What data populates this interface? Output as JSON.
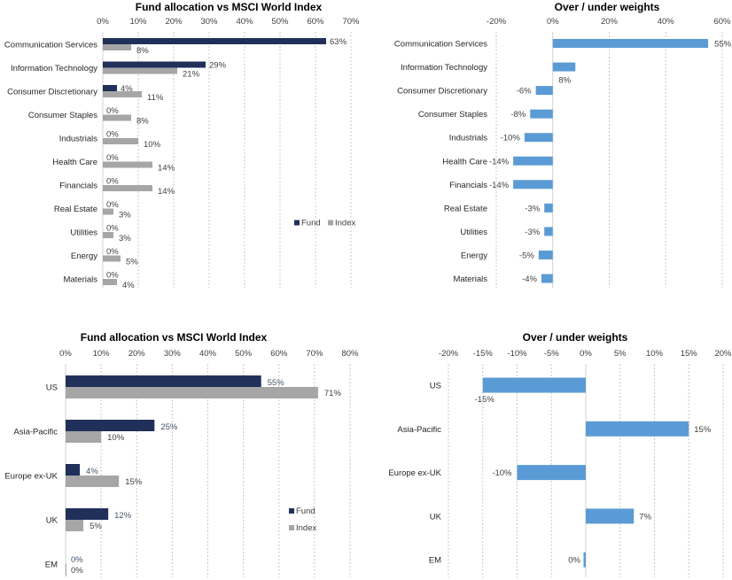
{
  "colors": {
    "fund": "#203059",
    "index": "#a6a6a6",
    "diff": "#5b9bd5"
  },
  "chart_data": [
    {
      "id": "sector-allocation",
      "type": "bar",
      "orientation": "horizontal",
      "title": "Fund allocation vs MSCI World Index",
      "categories": [
        "Communication Services",
        "Information Technology",
        "Consumer Discretionary",
        "Consumer Staples",
        "Industrials",
        "Health Care",
        "Financials",
        "Real Estate",
        "Utilities",
        "Energy",
        "Materials"
      ],
      "series": [
        {
          "name": "Fund",
          "values": [
            63,
            29,
            4,
            0,
            0,
            0,
            0,
            0,
            0,
            0,
            0
          ],
          "labels": [
            "63%",
            "29%",
            "4%",
            "0%",
            "0%",
            "0%",
            "0%",
            "0%",
            "0%",
            "0%",
            "0%"
          ]
        },
        {
          "name": "Index",
          "values": [
            8,
            21,
            11,
            8,
            10,
            14,
            14,
            3,
            3,
            5,
            4
          ],
          "labels": [
            "8%",
            "21%",
            "11%",
            "8%",
            "10%",
            "14%",
            "14%",
            "3%",
            "3%",
            "5%",
            "4%"
          ]
        }
      ],
      "xlim": [
        0,
        70
      ],
      "xticks": [
        "0%",
        "10%",
        "20%",
        "30%",
        "40%",
        "50%",
        "60%",
        "70%"
      ],
      "grid": true,
      "legend": {
        "placement": "right-middle",
        "entries": [
          "Fund",
          "Index"
        ]
      }
    },
    {
      "id": "sector-over-under",
      "type": "bar",
      "orientation": "horizontal",
      "title": "Over / under weights",
      "categories": [
        "Communication Services",
        "Information Technology",
        "Consumer Discretionary",
        "Consumer Staples",
        "Industrials",
        "Health Care",
        "Financials",
        "Real Estate",
        "Utilities",
        "Energy",
        "Materials"
      ],
      "series": [
        {
          "name": "Over / under",
          "values": [
            55,
            8,
            -6,
            -8,
            -10,
            -14,
            -14,
            -3,
            -3,
            -5,
            -4
          ],
          "labels": [
            "55%",
            "8%",
            "-6%",
            "-8%",
            "-10%",
            "-14%",
            "-14%",
            "-3%",
            "-3%",
            "-5%",
            "-4%"
          ]
        }
      ],
      "xlim": [
        -20,
        60
      ],
      "xticks": [
        "-20%",
        "0%",
        "20%",
        "40%",
        "60%"
      ],
      "grid": true
    },
    {
      "id": "region-allocation",
      "type": "bar",
      "orientation": "horizontal",
      "title": "Fund allocation vs MSCI World Index",
      "categories": [
        "US",
        "Asia-Pacific",
        "Europe ex-UK",
        "UK",
        "EM"
      ],
      "series": [
        {
          "name": "Fund",
          "values": [
            55,
            25,
            4,
            12,
            0
          ],
          "labels": [
            "55%",
            "25%",
            "4%",
            "12%",
            "0%"
          ]
        },
        {
          "name": "Index",
          "values": [
            71,
            10,
            15,
            5,
            0
          ],
          "labels": [
            "71%",
            "10%",
            "15%",
            "5%",
            "0%"
          ]
        }
      ],
      "xlim": [
        0,
        80
      ],
      "xticks": [
        "0%",
        "10%",
        "20%",
        "30%",
        "40%",
        "50%",
        "60%",
        "70%",
        "80%"
      ],
      "grid": true,
      "legend": {
        "placement": "right-bottom",
        "entries": [
          "Fund",
          "Index"
        ]
      }
    },
    {
      "id": "region-over-under",
      "type": "bar",
      "orientation": "horizontal",
      "title": "Over / under weights",
      "categories": [
        "US",
        "Asia-Pacific",
        "Europe ex-UK",
        "UK",
        "EM"
      ],
      "series": [
        {
          "name": "Over / under",
          "values": [
            -15,
            15,
            -10,
            7,
            0
          ],
          "labels": [
            "-15%",
            "15%",
            "-10%",
            "7%",
            "0%"
          ]
        }
      ],
      "xlim": [
        -20,
        20
      ],
      "xticks": [
        "-20%",
        "-15%",
        "-10%",
        "-5%",
        "0%",
        "5%",
        "10%",
        "15%",
        "20%"
      ],
      "grid": true
    }
  ]
}
